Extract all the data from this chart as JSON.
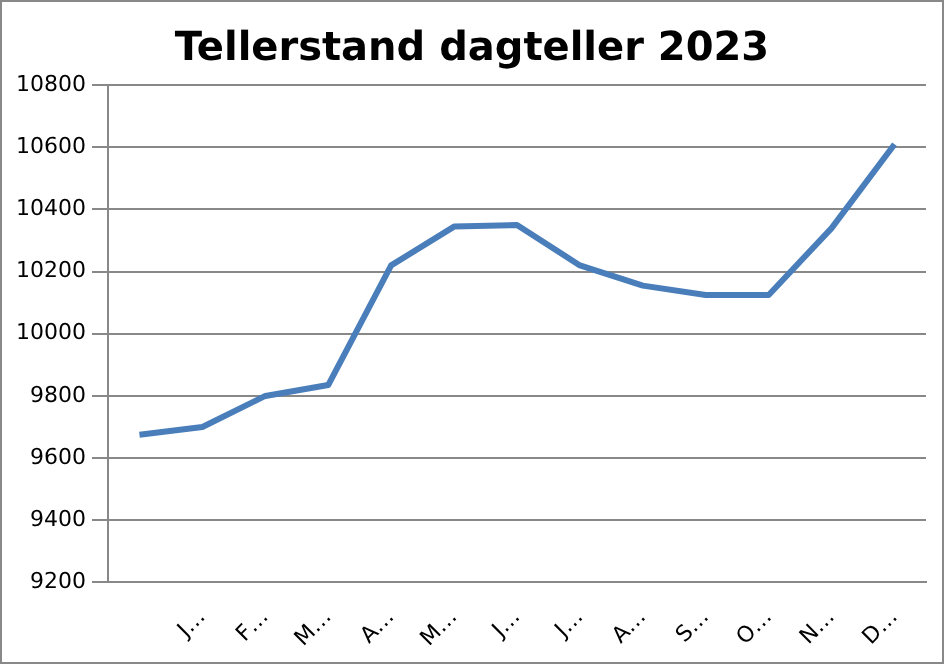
{
  "chart_data": {
    "type": "line",
    "title": "Tellerstand dagteller 2023",
    "categories": [
      null,
      "J…",
      "F…",
      "M…",
      "A…",
      "M…",
      "J…",
      "J…",
      "A…",
      "S…",
      "O…",
      "N…",
      "D…"
    ],
    "series": [
      {
        "color": "#4a7ebb",
        "values": [
          9675,
          9700,
          9800,
          9835,
          10220,
          10345,
          10350,
          10220,
          10155,
          10125,
          10125,
          10340,
          10610
        ]
      }
    ],
    "ylim": [
      9200,
      10800
    ],
    "yticks": [
      9200,
      9400,
      9600,
      9800,
      10000,
      10200,
      10400,
      10600,
      10800
    ],
    "grid": "y",
    "legend": false,
    "marker": "none",
    "line_style": "solid"
  }
}
